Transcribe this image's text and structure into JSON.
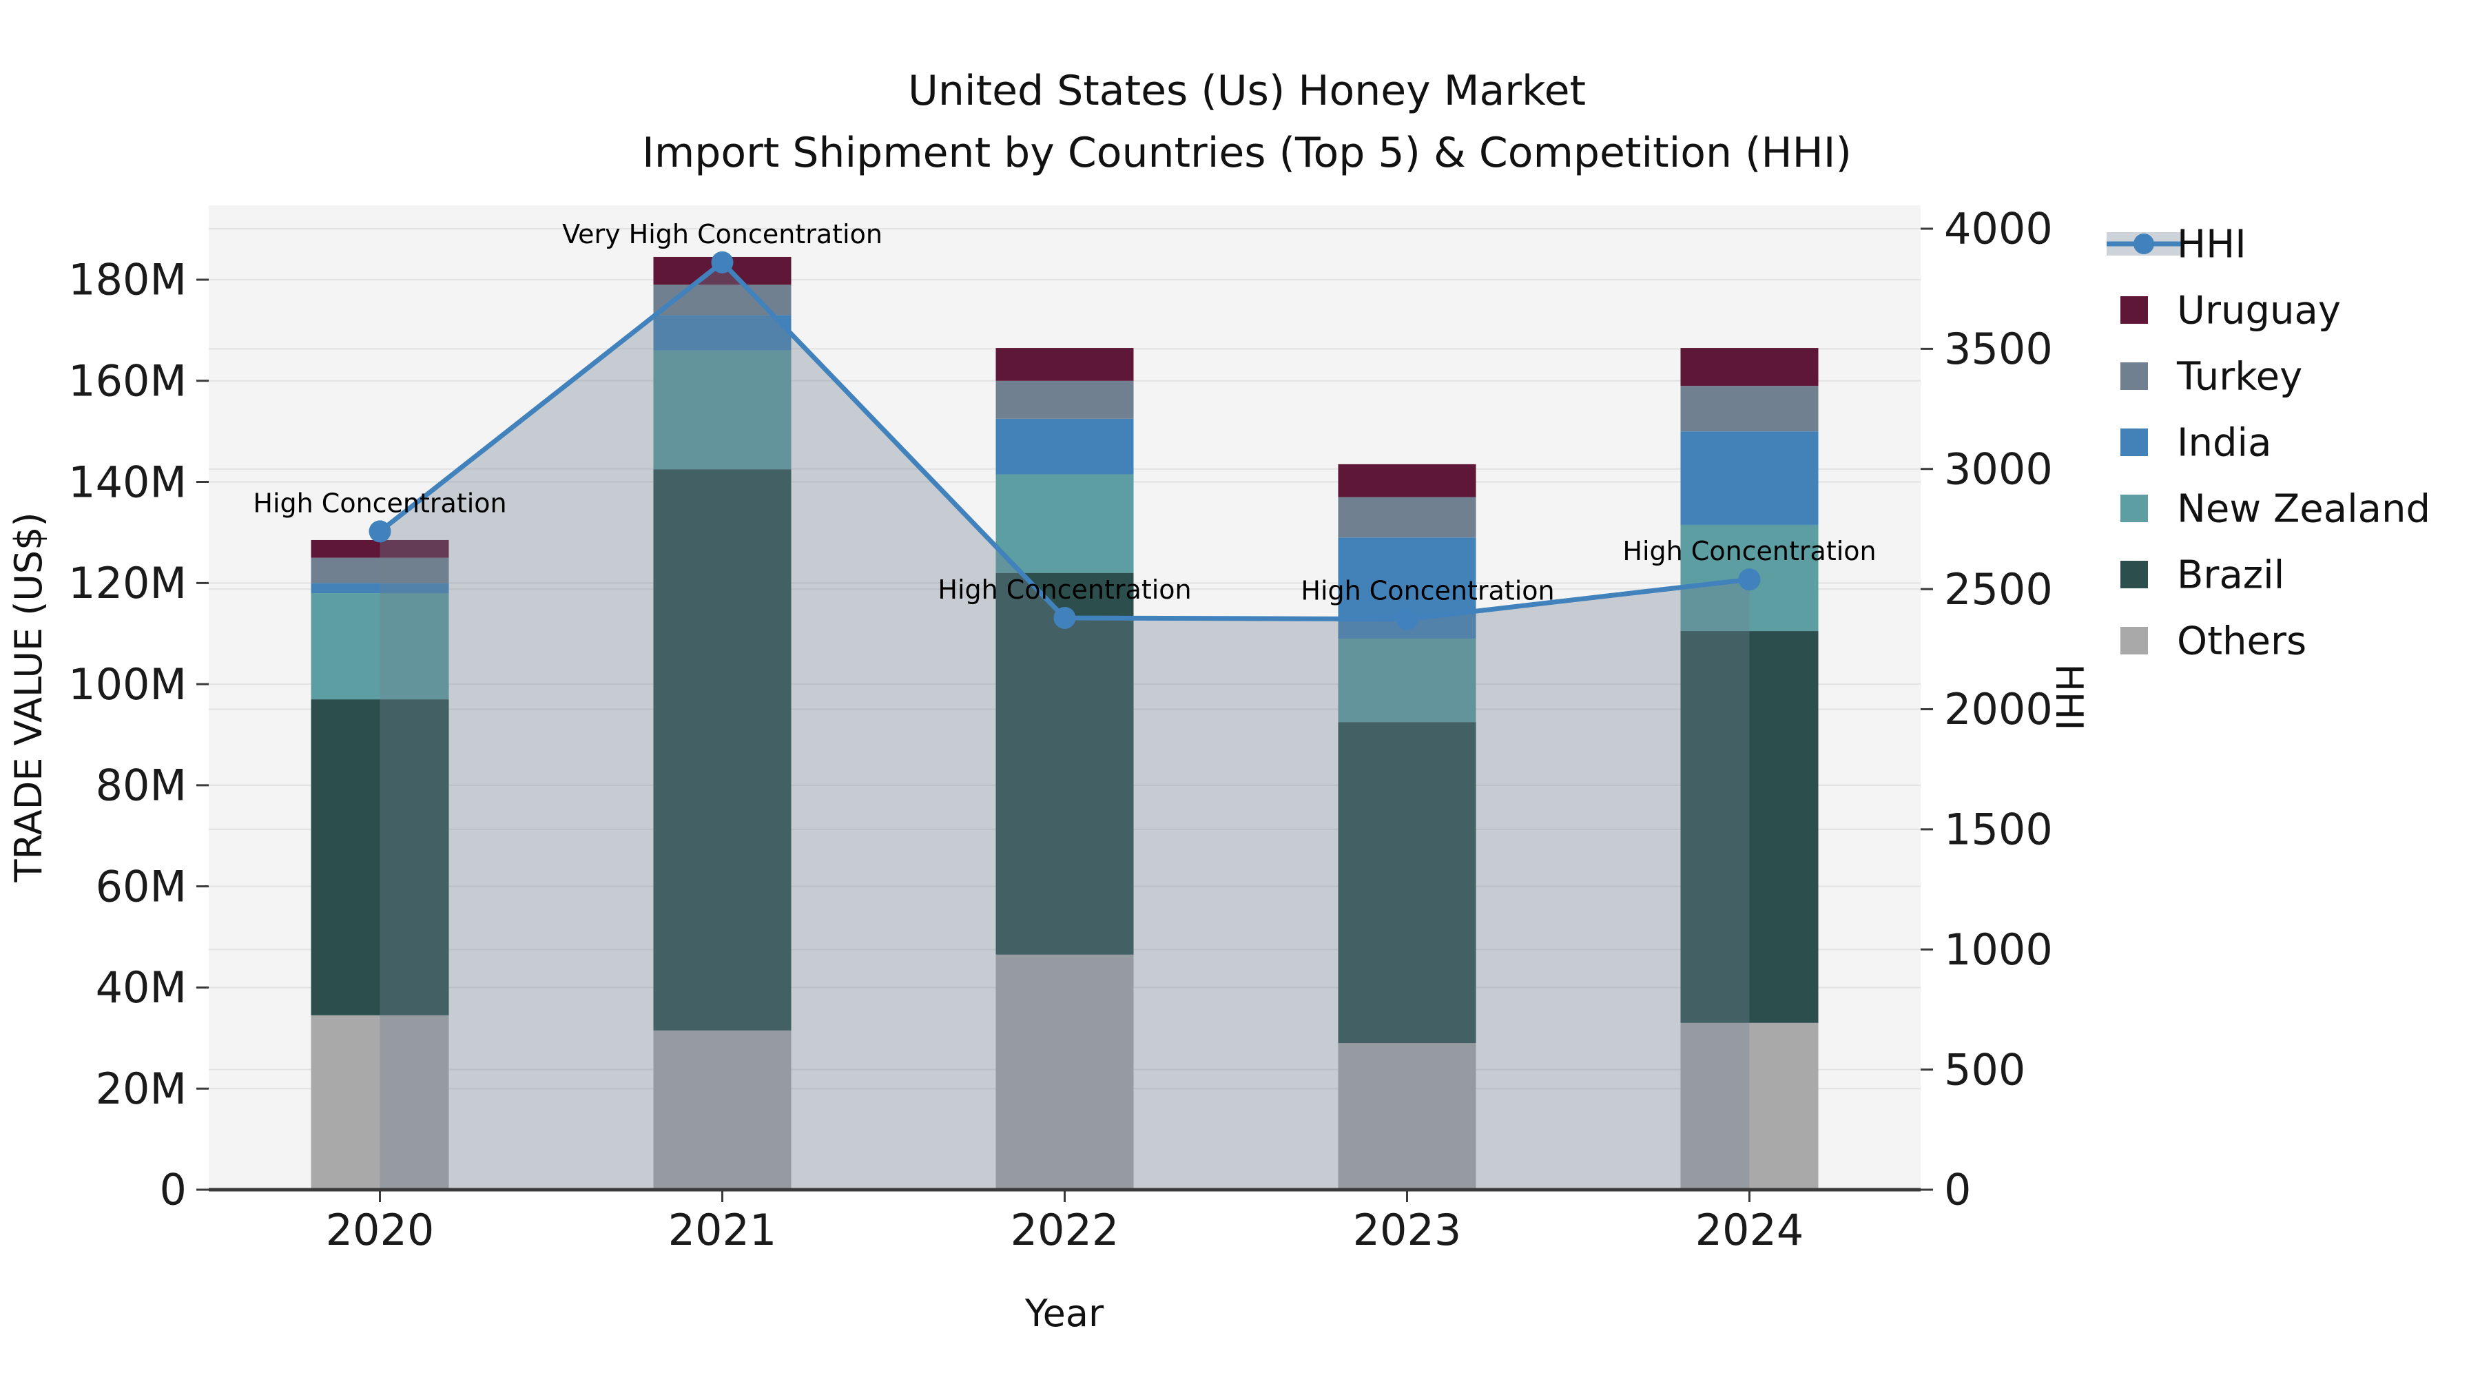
{
  "title": {
    "line1": "United States (Us) Honey Market",
    "line2": "Import Shipment by Countries (Top 5) & Competition (HHI)"
  },
  "colors": {
    "page_bg": "#ffffff",
    "plot_bg": "#f4f4f4",
    "grid": "#e2e2e2",
    "axis_line": "#3a3a3a",
    "text": "#111111",
    "hhi_line": "#4182bd",
    "hhi_fill": "#708090",
    "uruguay": "#5e1737",
    "turkey": "#708090",
    "india": "#4382b8",
    "new_zealand": "#5c9ea1",
    "brazil": "#2c4f4e",
    "others": "#a9a9a9"
  },
  "chart_data": {
    "type": "bar",
    "subtype": "stacked-bars-with-line-overlay",
    "unit": "US$ millions (left axis), HHI index (right axis)",
    "categories": [
      "2020",
      "2021",
      "2022",
      "2023",
      "2024"
    ],
    "series": [
      {
        "name": "Others",
        "color": "#a9a9a9",
        "values": [
          34.5,
          31.5,
          46.5,
          29.0,
          33.0
        ]
      },
      {
        "name": "Brazil",
        "color": "#2c4f4e",
        "values": [
          62.5,
          111.0,
          75.5,
          63.5,
          77.5
        ]
      },
      {
        "name": "New Zealand",
        "color": "#5c9ea1",
        "values": [
          21.0,
          23.5,
          19.5,
          16.5,
          21.0
        ]
      },
      {
        "name": "India",
        "color": "#4382b8",
        "values": [
          2.0,
          7.0,
          11.0,
          20.0,
          18.5
        ]
      },
      {
        "name": "Turkey",
        "color": "#708090",
        "values": [
          5.0,
          6.0,
          7.5,
          8.0,
          9.0
        ]
      },
      {
        "name": "Uruguay",
        "color": "#5e1737",
        "values": [
          3.5,
          5.5,
          6.5,
          6.5,
          7.5
        ]
      }
    ],
    "stack_totals": [
      128.5,
      184.5,
      166.5,
      143.5,
      166.5
    ],
    "line_series": {
      "name": "HHI",
      "color": "#4182bd",
      "fill_color": "#708090",
      "fill_opacity": 0.35,
      "values": [
        2740,
        3860,
        2380,
        2375,
        2540
      ]
    },
    "annotations": [
      {
        "year": "2020",
        "text": "High Concentration"
      },
      {
        "year": "2021",
        "text": "Very High Concentration"
      },
      {
        "year": "2022",
        "text": "High Concentration"
      },
      {
        "year": "2023",
        "text": "High Concentration"
      },
      {
        "year": "2024",
        "text": "High Concentration"
      }
    ],
    "left_axis": {
      "label": "TRADE VALUE (US$)",
      "ticks": [
        "0",
        "20M",
        "40M",
        "60M",
        "80M",
        "100M",
        "120M",
        "140M",
        "160M",
        "180M"
      ],
      "tick_values_M": [
        0,
        20,
        40,
        60,
        80,
        100,
        120,
        140,
        160,
        180
      ],
      "range_M": [
        0,
        194
      ]
    },
    "right_axis": {
      "label": "HHI",
      "ticks": [
        "0",
        "500",
        "1000",
        "1500",
        "2000",
        "2500",
        "3000",
        "3500",
        "4000"
      ],
      "tick_values": [
        0,
        500,
        1000,
        1500,
        2000,
        2500,
        3000,
        3500,
        4000
      ],
      "range": [
        0,
        4095
      ]
    },
    "x_axis": {
      "label": "Year"
    },
    "legend": [
      {
        "label": "HHI",
        "swatch": "line"
      },
      {
        "label": "Uruguay",
        "swatch": "#5e1737"
      },
      {
        "label": "Turkey",
        "swatch": "#708090"
      },
      {
        "label": "India",
        "swatch": "#4382b8"
      },
      {
        "label": "New Zealand",
        "swatch": "#5c9ea1"
      },
      {
        "label": "Brazil",
        "swatch": "#2c4f4e"
      },
      {
        "label": "Others",
        "swatch": "#a9a9a9"
      }
    ],
    "legend_position": "right",
    "grid": true
  }
}
